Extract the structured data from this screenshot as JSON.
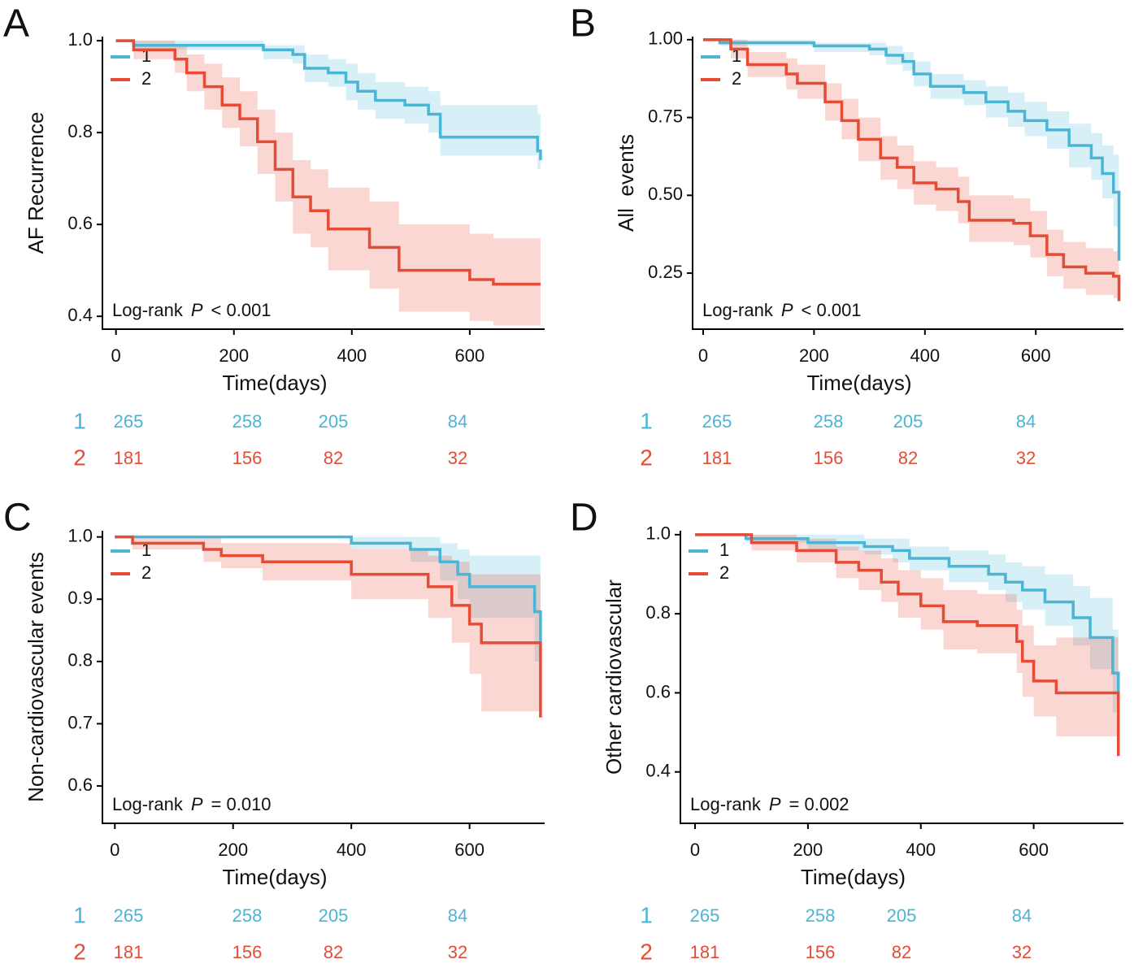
{
  "chart_data": [
    {
      "type": "km",
      "panel_label": "A",
      "ylabel": "AF Recurrence",
      "xlabel": "Time(days)",
      "xlim": [
        -23,
        727
      ],
      "ylim": [
        0.372,
        1.009
      ],
      "xticks": [
        0,
        200,
        400,
        600
      ],
      "yticks": [
        0.4,
        0.6,
        0.8,
        {
          "value": 1,
          "label": "1.0"
        }
      ],
      "annotation_prefix": "Log-rank",
      "annotation_p": "P",
      "annotation_rest": "< 0.001",
      "series": [
        {
          "name": "1",
          "color": "#4ab5d5",
          "x": [
            0,
            30,
            250,
            300,
            320,
            360,
            390,
            410,
            440,
            490,
            530,
            550,
            715,
            720
          ],
          "values": [
            1,
            0.99,
            0.98,
            0.97,
            0.94,
            0.93,
            0.91,
            0.89,
            0.87,
            0.86,
            0.84,
            0.79,
            0.76,
            0.74
          ],
          "lower": [
            1,
            0.98,
            0.96,
            0.95,
            0.91,
            0.9,
            0.87,
            0.85,
            0.83,
            0.82,
            0.8,
            0.75,
            0.72,
            0.7
          ],
          "upper": [
            1,
            1,
            0.99,
            0.99,
            0.97,
            0.96,
            0.95,
            0.93,
            0.91,
            0.9,
            0.89,
            0.86,
            0.84,
            0.83
          ],
          "at_risk": [
            265,
            258,
            205,
            84
          ]
        },
        {
          "name": "2",
          "color": "#e64b35",
          "x": [
            0,
            30,
            100,
            120,
            150,
            180,
            210,
            240,
            270,
            300,
            330,
            360,
            430,
            480,
            600,
            640,
            720
          ],
          "values": [
            1,
            0.98,
            0.96,
            0.93,
            0.9,
            0.86,
            0.83,
            0.78,
            0.72,
            0.66,
            0.63,
            0.59,
            0.55,
            0.5,
            0.48,
            0.47,
            0.47
          ],
          "lower": [
            1,
            0.96,
            0.93,
            0.89,
            0.85,
            0.81,
            0.77,
            0.71,
            0.65,
            0.58,
            0.55,
            0.5,
            0.46,
            0.41,
            0.39,
            0.38,
            0.38
          ],
          "upper": [
            1,
            1,
            0.99,
            0.97,
            0.95,
            0.92,
            0.89,
            0.85,
            0.8,
            0.74,
            0.72,
            0.68,
            0.65,
            0.6,
            0.58,
            0.57,
            0.57
          ],
          "at_risk": [
            181,
            156,
            82,
            32
          ]
        }
      ]
    },
    {
      "type": "km",
      "panel_label": "B",
      "ylabel": "All  events",
      "xlabel": "Time(days)",
      "xlim": [
        -19,
        758
      ],
      "ylim": [
        0.07,
        1.01
      ],
      "xticks": [
        0,
        200,
        400,
        600
      ],
      "yticks": [
        0.25,
        {
          "value": 0.5,
          "label": "0.50"
        },
        0.75,
        {
          "value": 1,
          "label": "1.00"
        }
      ],
      "annotation_prefix": "Log-rank",
      "annotation_p": "P",
      "annotation_rest": "< 0.001",
      "series": [
        {
          "name": "1",
          "color": "#4ab5d5",
          "x": [
            0,
            30,
            200,
            300,
            330,
            360,
            380,
            410,
            470,
            510,
            550,
            580,
            620,
            660,
            700,
            720,
            740,
            750
          ],
          "values": [
            1,
            0.99,
            0.98,
            0.97,
            0.95,
            0.93,
            0.89,
            0.85,
            0.83,
            0.8,
            0.77,
            0.74,
            0.71,
            0.66,
            0.62,
            0.57,
            0.51,
            0.29
          ],
          "lower": [
            1,
            0.98,
            0.96,
            0.95,
            0.92,
            0.9,
            0.85,
            0.81,
            0.79,
            0.75,
            0.72,
            0.69,
            0.65,
            0.59,
            0.55,
            0.49,
            0.4,
            0.38
          ],
          "upper": [
            1,
            1,
            0.99,
            0.99,
            0.98,
            0.96,
            0.93,
            0.89,
            0.87,
            0.85,
            0.83,
            0.8,
            0.77,
            0.73,
            0.7,
            0.66,
            0.63,
            0.63
          ],
          "at_risk": [
            265,
            258,
            205,
            84
          ]
        },
        {
          "name": "2",
          "color": "#e64b35",
          "x": [
            0,
            50,
            80,
            150,
            170,
            220,
            250,
            280,
            320,
            350,
            380,
            420,
            460,
            480,
            560,
            590,
            620,
            650,
            690,
            740,
            750
          ],
          "values": [
            1,
            0.97,
            0.92,
            0.89,
            0.86,
            0.8,
            0.74,
            0.68,
            0.62,
            0.59,
            0.54,
            0.52,
            0.48,
            0.42,
            0.41,
            0.37,
            0.31,
            0.27,
            0.25,
            0.24,
            0.16
          ],
          "lower": [
            1,
            0.94,
            0.88,
            0.84,
            0.81,
            0.74,
            0.68,
            0.61,
            0.55,
            0.52,
            0.47,
            0.45,
            0.41,
            0.35,
            0.34,
            0.3,
            0.24,
            0.2,
            0.18,
            0.17,
            0.17
          ],
          "upper": [
            1,
            1,
            0.96,
            0.94,
            0.92,
            0.86,
            0.81,
            0.75,
            0.69,
            0.66,
            0.61,
            0.59,
            0.56,
            0.5,
            0.49,
            0.45,
            0.39,
            0.35,
            0.33,
            0.32,
            0.32
          ],
          "at_risk": [
            181,
            156,
            82,
            32
          ]
        }
      ]
    },
    {
      "type": "km",
      "panel_label": "C",
      "ylabel": "Non-cardiovascular events",
      "xlabel": "Time(days)",
      "xlim": [
        -21,
        727
      ],
      "ylim": [
        0.54,
        1.01
      ],
      "xticks": [
        0,
        200,
        400,
        600
      ],
      "yticks": [
        0.6,
        0.7,
        0.8,
        0.9,
        {
          "value": 1,
          "label": "1.0"
        }
      ],
      "annotation_prefix": "Log-rank",
      "annotation_p": "P",
      "annotation_rest": "= 0.010",
      "series": [
        {
          "name": "1",
          "color": "#4ab5d5",
          "x": [
            0,
            400,
            500,
            550,
            580,
            600,
            710,
            720
          ],
          "values": [
            1,
            0.99,
            0.98,
            0.96,
            0.94,
            0.92,
            0.88,
            0.83
          ],
          "lower": [
            1,
            0.98,
            0.96,
            0.93,
            0.9,
            0.87,
            0.8,
            0.8
          ],
          "upper": [
            1,
            1,
            1,
            0.99,
            0.98,
            0.97,
            0.97,
            0.97
          ],
          "at_risk": [
            265,
            258,
            205,
            84
          ]
        },
        {
          "name": "2",
          "color": "#e64b35",
          "x": [
            0,
            30,
            150,
            180,
            250,
            400,
            530,
            570,
            600,
            620,
            720
          ],
          "values": [
            1,
            0.99,
            0.98,
            0.97,
            0.96,
            0.94,
            0.92,
            0.89,
            0.86,
            0.83,
            0.71
          ],
          "lower": [
            1,
            0.98,
            0.96,
            0.95,
            0.93,
            0.9,
            0.87,
            0.83,
            0.78,
            0.72,
            0.72
          ],
          "upper": [
            1,
            1,
            1,
            0.99,
            0.99,
            0.98,
            0.97,
            0.96,
            0.94,
            0.94,
            0.94
          ],
          "at_risk": [
            181,
            156,
            82,
            32
          ]
        }
      ]
    },
    {
      "type": "km",
      "panel_label": "D",
      "ylabel": "Other cardiovascular",
      "xlabel": "Time(days)",
      "xlim": [
        -26,
        759
      ],
      "ylim": [
        0.27,
        1.01
      ],
      "xticks": [
        0,
        200,
        400,
        600
      ],
      "yticks": [
        0.4,
        0.6,
        0.8,
        {
          "value": 1,
          "label": "1.0"
        }
      ],
      "annotation_prefix": "Log-rank",
      "annotation_p": "P",
      "annotation_rest": "= 0.002",
      "series": [
        {
          "name": "1",
          "color": "#4ab5d5",
          "x": [
            0,
            90,
            200,
            300,
            350,
            380,
            450,
            520,
            550,
            580,
            620,
            670,
            700,
            740,
            750
          ],
          "values": [
            1,
            0.99,
            0.98,
            0.97,
            0.96,
            0.94,
            0.92,
            0.9,
            0.88,
            0.86,
            0.83,
            0.79,
            0.74,
            0.65,
            0.6
          ],
          "lower": [
            1,
            0.98,
            0.96,
            0.95,
            0.93,
            0.91,
            0.88,
            0.86,
            0.83,
            0.81,
            0.77,
            0.72,
            0.66,
            0.55,
            0.55
          ],
          "upper": [
            1,
            1,
            1,
            0.99,
            0.99,
            0.97,
            0.96,
            0.95,
            0.93,
            0.92,
            0.9,
            0.87,
            0.84,
            0.76,
            0.76
          ],
          "at_risk": [
            265,
            258,
            205,
            84
          ]
        },
        {
          "name": "2",
          "color": "#e64b35",
          "x": [
            0,
            100,
            180,
            250,
            290,
            330,
            360,
            400,
            440,
            500,
            570,
            580,
            600,
            640,
            750
          ],
          "values": [
            1,
            0.98,
            0.96,
            0.93,
            0.91,
            0.88,
            0.85,
            0.82,
            0.78,
            0.77,
            0.73,
            0.68,
            0.63,
            0.6,
            0.44
          ],
          "lower": [
            1,
            0.96,
            0.93,
            0.89,
            0.86,
            0.83,
            0.79,
            0.76,
            0.71,
            0.7,
            0.65,
            0.59,
            0.54,
            0.49,
            0.49
          ],
          "upper": [
            1,
            1,
            0.99,
            0.97,
            0.96,
            0.94,
            0.91,
            0.89,
            0.86,
            0.85,
            0.81,
            0.77,
            0.72,
            0.74,
            0.74
          ],
          "at_risk": [
            181,
            156,
            82,
            32
          ]
        }
      ]
    }
  ]
}
